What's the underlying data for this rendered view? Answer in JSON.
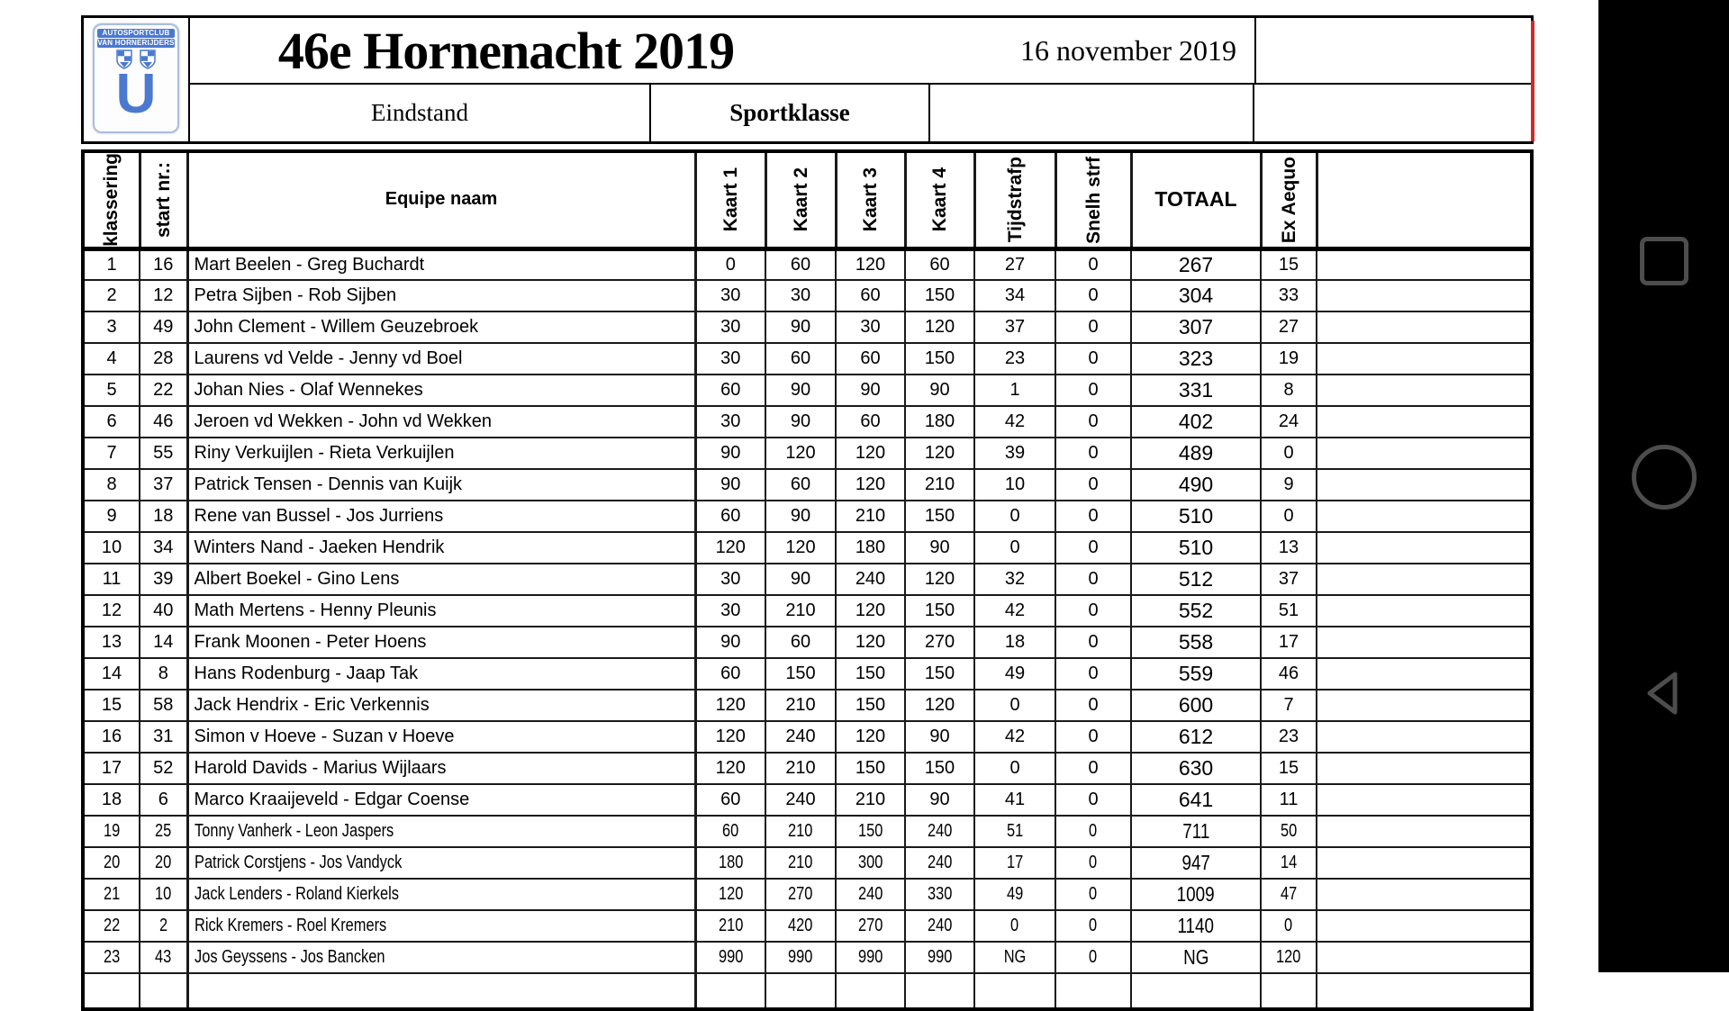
{
  "document": {
    "logo": {
      "line1": "AUTOSPORTCLUB",
      "line2": "VAN HORNERIJDERS",
      "monogram": "U",
      "blue": "#4a79cf"
    },
    "title": "46e Hornenacht 2019",
    "date": "16 november 2019",
    "stage_label": "Eindstand",
    "class_label": "Sportklasse",
    "table": {
      "columns": [
        "klassering",
        "start nr.:",
        "Equipe naam",
        "Kaart 1",
        "Kaart 2",
        "Kaart 3",
        "Kaart 4",
        "Tijdstrafp",
        "Snelh strf",
        "TOTAAL",
        "Ex Aequo",
        ""
      ],
      "rotated_column_indexes": [
        0,
        1,
        3,
        4,
        5,
        6,
        7,
        8,
        10
      ],
      "condensed_from_index": 18,
      "rows": [
        [
          "1",
          "16",
          "Mart Beelen - Greg Buchardt",
          "0",
          "60",
          "120",
          "60",
          "27",
          "0",
          "267",
          "15"
        ],
        [
          "2",
          "12",
          "Petra Sijben - Rob Sijben",
          "30",
          "30",
          "60",
          "150",
          "34",
          "0",
          "304",
          "33"
        ],
        [
          "3",
          "49",
          "John Clement - Willem Geuzebroek",
          "30",
          "90",
          "30",
          "120",
          "37",
          "0",
          "307",
          "27"
        ],
        [
          "4",
          "28",
          "Laurens vd Velde - Jenny vd Boel",
          "30",
          "60",
          "60",
          "150",
          "23",
          "0",
          "323",
          "19"
        ],
        [
          "5",
          "22",
          "Johan Nies - Olaf Wennekes",
          "60",
          "90",
          "90",
          "90",
          "1",
          "0",
          "331",
          "8"
        ],
        [
          "6",
          "46",
          "Jeroen vd Wekken - John vd Wekken",
          "30",
          "90",
          "60",
          "180",
          "42",
          "0",
          "402",
          "24"
        ],
        [
          "7",
          "55",
          "Riny Verkuijlen - Rieta Verkuijlen",
          "90",
          "120",
          "120",
          "120",
          "39",
          "0",
          "489",
          "0"
        ],
        [
          "8",
          "37",
          "Patrick Tensen - Dennis van Kuijk",
          "90",
          "60",
          "120",
          "210",
          "10",
          "0",
          "490",
          "9"
        ],
        [
          "9",
          "18",
          "Rene van Bussel - Jos Jurriens",
          "60",
          "90",
          "210",
          "150",
          "0",
          "0",
          "510",
          "0"
        ],
        [
          "10",
          "34",
          "Winters Nand - Jaeken Hendrik",
          "120",
          "120",
          "180",
          "90",
          "0",
          "0",
          "510",
          "13"
        ],
        [
          "11",
          "39",
          "Albert Boekel - Gino Lens",
          "30",
          "90",
          "240",
          "120",
          "32",
          "0",
          "512",
          "37"
        ],
        [
          "12",
          "40",
          "Math Mertens - Henny Pleunis",
          "30",
          "210",
          "120",
          "150",
          "42",
          "0",
          "552",
          "51"
        ],
        [
          "13",
          "14",
          "Frank Moonen - Peter Hoens",
          "90",
          "60",
          "120",
          "270",
          "18",
          "0",
          "558",
          "17"
        ],
        [
          "14",
          "8",
          "Hans Rodenburg - Jaap Tak",
          "60",
          "150",
          "150",
          "150",
          "49",
          "0",
          "559",
          "46"
        ],
        [
          "15",
          "58",
          "Jack Hendrix - Eric Verkennis",
          "120",
          "210",
          "150",
          "120",
          "0",
          "0",
          "600",
          "7"
        ],
        [
          "16",
          "31",
          "Simon v Hoeve - Suzan v Hoeve",
          "120",
          "240",
          "120",
          "90",
          "42",
          "0",
          "612",
          "23"
        ],
        [
          "17",
          "52",
          "Harold Davids - Marius Wijlaars",
          "120",
          "210",
          "150",
          "150",
          "0",
          "0",
          "630",
          "15"
        ],
        [
          "18",
          "6",
          "Marco Kraaijeveld - Edgar Coense",
          "60",
          "240",
          "210",
          "90",
          "41",
          "0",
          "641",
          "11"
        ],
        [
          "19",
          "25",
          "Tonny Vanherk - Leon Jaspers",
          "60",
          "210",
          "150",
          "240",
          "51",
          "0",
          "711",
          "50"
        ],
        [
          "20",
          "20",
          "Patrick Corstjens - Jos Vandyck",
          "180",
          "210",
          "300",
          "240",
          "17",
          "0",
          "947",
          "14"
        ],
        [
          "21",
          "10",
          "Jack Lenders - Roland Kierkels",
          "120",
          "270",
          "240",
          "330",
          "49",
          "0",
          "1009",
          "47"
        ],
        [
          "22",
          "2",
          "Rick Kremers - Roel Kremers",
          "210",
          "420",
          "270",
          "240",
          "0",
          "0",
          "1140",
          "0"
        ],
        [
          "23",
          "43",
          "Jos Geyssens - Jos Bancken",
          "990",
          "990",
          "990",
          "990",
          "NG",
          "0",
          "NG",
          "120"
        ]
      ]
    }
  },
  "viewer": {
    "scroll_indicator_color": "#cc2a2a"
  },
  "nav": {
    "bar_color": "#000000",
    "icon_color": "#4d4d4d",
    "recents_label": "recents",
    "home_label": "home",
    "back_label": "back"
  }
}
